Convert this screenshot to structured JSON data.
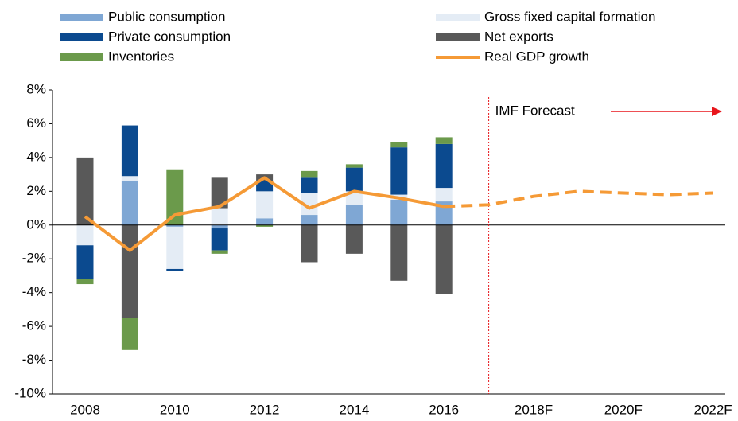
{
  "chart_data": {
    "type": "stacked_bar_line",
    "annotation": {
      "text": "IMF Forecast",
      "color": "#e8151b"
    },
    "categories": [
      "2008",
      null,
      "2010",
      null,
      "2012",
      null,
      "2014",
      null,
      "2016",
      null,
      "2018F",
      null,
      "2020F",
      null,
      "2022F"
    ],
    "series": [
      {
        "name": "Public consumption",
        "type": "bar",
        "color": "#7fa7d4",
        "values": [
          0,
          2.6,
          -0.1,
          -0.2,
          0.4,
          0.6,
          1.2,
          1.5,
          1.4,
          null,
          null,
          null,
          null,
          null,
          null
        ]
      },
      {
        "name": "Gross fixed capital formation",
        "type": "bar",
        "color": "#e4ecf5",
        "values": [
          -1.2,
          0.3,
          -2.5,
          1.0,
          1.6,
          1.3,
          0.8,
          0.3,
          0.8,
          null,
          null,
          null,
          null,
          null,
          null
        ]
      },
      {
        "name": "Private consumption",
        "type": "bar",
        "color": "#0b4a8f",
        "values": [
          -2.0,
          3.0,
          -0.1,
          -1.3,
          0.6,
          0.9,
          1.4,
          2.8,
          2.6,
          null,
          null,
          null,
          null,
          null,
          null
        ]
      },
      {
        "name": "Net exports",
        "type": "bar",
        "color": "#595959",
        "values": [
          4.0,
          -5.5,
          0,
          1.8,
          0.4,
          -2.2,
          -1.7,
          -3.3,
          -4.1,
          null,
          null,
          null,
          null,
          null,
          null
        ]
      },
      {
        "name": "Inventories",
        "type": "bar",
        "color": "#6b9a4b",
        "values": [
          -0.3,
          -1.9,
          3.3,
          -0.2,
          -0.1,
          0.4,
          0.2,
          0.3,
          0.4,
          null,
          null,
          null,
          null,
          null,
          null
        ]
      },
      {
        "name": "Real GDP growth",
        "type": "line",
        "color": "#f59a36",
        "values": [
          0.5,
          -1.5,
          0.6,
          1.1,
          2.8,
          1.0,
          2.0,
          1.6,
          1.1,
          1.2,
          1.7,
          2.0,
          1.9,
          1.8,
          1.9
        ]
      }
    ],
    "ylim": [
      -10,
      8
    ],
    "yticks": [
      {
        "value": -10,
        "label": "-10%"
      },
      {
        "value": -8,
        "label": "-8%"
      },
      {
        "value": -6,
        "label": "-6%"
      },
      {
        "value": -4,
        "label": "-4%"
      },
      {
        "value": -2,
        "label": "-2%"
      },
      {
        "value": 0,
        "label": "0%"
      },
      {
        "value": 2,
        "label": "2%"
      },
      {
        "value": 4,
        "label": "4%"
      },
      {
        "value": 6,
        "label": "6%"
      },
      {
        "value": 8,
        "label": "8%"
      }
    ]
  }
}
